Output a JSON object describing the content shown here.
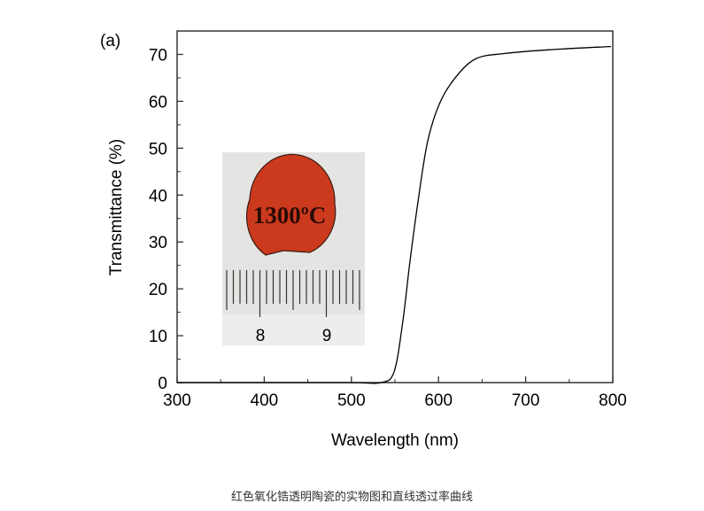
{
  "chart_data": {
    "type": "line",
    "panel_label": "(a)",
    "xlabel": "Wavelength (nm)",
    "ylabel": "Transmittance (%)",
    "xlim": [
      300,
      800
    ],
    "ylim": [
      0,
      75
    ],
    "xticks": [
      300,
      400,
      500,
      600,
      700,
      800
    ],
    "yticks": [
      0,
      10,
      20,
      30,
      40,
      50,
      60,
      70
    ],
    "grid": false,
    "series": [
      {
        "color": "#000000",
        "x": [
          300,
          400,
          500,
          534,
          549,
          559,
          567,
          576,
          587,
          600,
          617,
          642,
          676,
          727,
          798
        ],
        "y": [
          0,
          0,
          0,
          0,
          2.3,
          13,
          25.5,
          38,
          51,
          59,
          64.5,
          69,
          70.2,
          71,
          71.7
        ]
      }
    ],
    "inset": {
      "sample_label": "1300ºC",
      "ruler_labels": [
        "8",
        "9"
      ],
      "sample_color": "#cc3a1e"
    }
  },
  "caption": "红色氧化锆透明陶瓷的实物图和直线透过率曲线"
}
